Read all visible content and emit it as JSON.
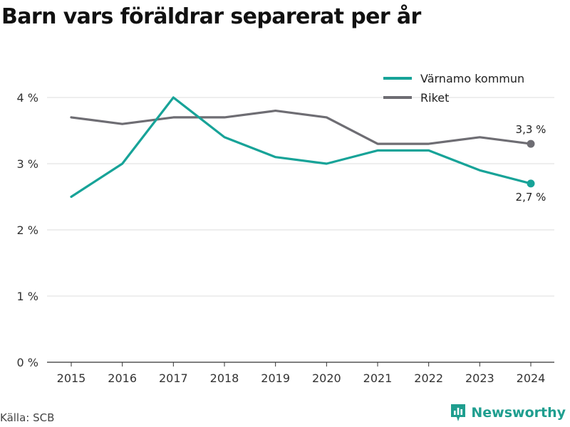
{
  "title": "Barn vars föräldrar separerat per år",
  "source": "Källa: SCB",
  "brand": {
    "name": "Newsworthy",
    "icon": "newsworthy-logo-icon"
  },
  "colors": {
    "varnamo": "#17a398",
    "riket": "#6e6d73"
  },
  "end_labels": [
    "3,3 %",
    "2,7 %"
  ],
  "chart_data": {
    "type": "line",
    "x": [
      "2015",
      "2016",
      "2017",
      "2018",
      "2019",
      "2020",
      "2021",
      "2022",
      "2023",
      "2024"
    ],
    "series": [
      {
        "name": "Värnamo kommun",
        "values": [
          2.5,
          3.0,
          4.0,
          3.4,
          3.1,
          3.0,
          3.2,
          3.2,
          2.9,
          2.7
        ]
      },
      {
        "name": "Riket",
        "values": [
          3.7,
          3.6,
          3.7,
          3.7,
          3.8,
          3.7,
          3.3,
          3.3,
          3.4,
          3.3
        ]
      }
    ],
    "yticks": [
      "0 %",
      "1 %",
      "2 %",
      "3 %",
      "4 %"
    ],
    "ylim": [
      0,
      4.3
    ],
    "grid": true,
    "legend_position": "top-right"
  }
}
